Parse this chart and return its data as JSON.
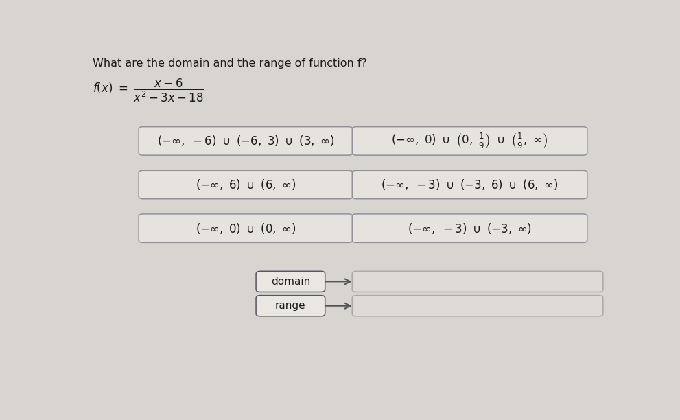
{
  "title": "What are the domain and the range of function f?",
  "background_color": "#d8d4d0",
  "box_face_color": "#e6e2de",
  "box_edge_color": "#9090a0",
  "text_color": "#1a1a1a",
  "label_domain": "domain",
  "label_range": "range",
  "arrow_color": "#555555"
}
